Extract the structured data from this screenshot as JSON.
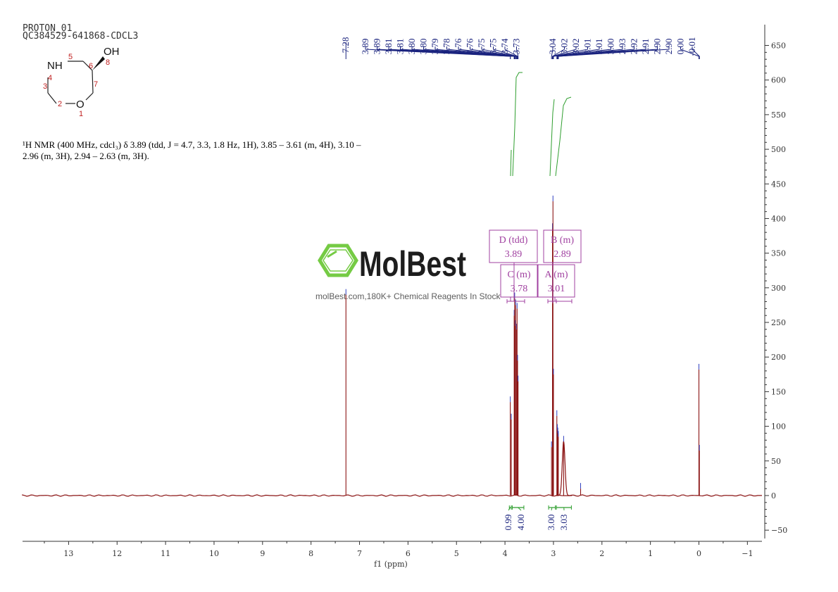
{
  "header": {
    "line1": "PROTON_01",
    "line2": "QC384529-641868-CDCL3"
  },
  "molecule": {
    "labels": {
      "nh": "NH",
      "oh": "OH",
      "o": "O"
    },
    "atom_numbers": [
      "1",
      "2",
      "3",
      "4",
      "5",
      "6",
      "7",
      "8"
    ]
  },
  "description": {
    "line1": "¹H NMR (400 MHz, cdcl₃) δ 3.89 (tdd, J = 4.7, 3.3, 1.8 Hz, 1H), 3.85 – 3.61 (m, 4H), 3.10 –",
    "line2": "2.96 (m, 3H), 2.94 – 2.63 (m, 3H)."
  },
  "watermark": {
    "brand": "MolBest",
    "tagline": "molBest.com,180K+ Chemical Reagents In Stock"
  },
  "chart_data": {
    "type": "line",
    "xlabel": "f1 (ppm)",
    "x_reversed": true,
    "xlim": [
      13.95,
      -1.3
    ],
    "ylim": [
      -60,
      680
    ],
    "x_ticks": [
      13,
      12,
      11,
      10,
      9,
      8,
      7,
      6,
      5,
      4,
      3,
      2,
      1,
      0,
      -1
    ],
    "x_tick_labels": [
      "13",
      "12",
      "11",
      "10",
      "9",
      "8",
      "7",
      "6",
      "5",
      "4",
      "3",
      "2",
      "1",
      "0",
      "−1"
    ],
    "y_ticks": [
      650,
      600,
      550,
      500,
      450,
      400,
      350,
      300,
      250,
      200,
      150,
      100,
      50,
      0,
      -50
    ],
    "y_tick_labels": [
      "650",
      "600",
      "550",
      "500",
      "450",
      "400",
      "350",
      "300",
      "250",
      "200",
      "150",
      "100",
      "50",
      "0",
      "−50"
    ],
    "peak_labels_a": [
      "7.28",
      "3.89",
      "3.89",
      "3.81",
      "3.81",
      "3.80",
      "3.80",
      "3.79",
      "3.78",
      "3.76",
      "3.76",
      "3.75",
      "3.75",
      "3.74",
      "3.73"
    ],
    "peak_labels_b": [
      "3.04",
      "3.02",
      "3.02",
      "3.01",
      "3.01",
      "3.00",
      "2.93",
      "2.92",
      "2.91",
      "2.90",
      "2.90",
      "0.00",
      "-0.01"
    ],
    "peaks": [
      {
        "x": 7.28,
        "h": 290
      },
      {
        "x": 3.89,
        "h": 135
      },
      {
        "x": 3.87,
        "h": 110
      },
      {
        "x": 3.81,
        "h": 260
      },
      {
        "x": 3.8,
        "h": 285
      },
      {
        "x": 3.79,
        "h": 245
      },
      {
        "x": 3.78,
        "h": 275
      },
      {
        "x": 3.76,
        "h": 240
      },
      {
        "x": 3.75,
        "h": 270
      },
      {
        "x": 3.74,
        "h": 195
      },
      {
        "x": 3.73,
        "h": 165
      },
      {
        "x": 3.04,
        "h": 70
      },
      {
        "x": 3.02,
        "h": 385
      },
      {
        "x": 3.01,
        "h": 425
      },
      {
        "x": 3.0,
        "h": 175
      },
      {
        "x": 2.93,
        "h": 115
      },
      {
        "x": 2.92,
        "h": 95
      },
      {
        "x": 2.91,
        "h": 90
      },
      {
        "x": 2.9,
        "h": 85
      },
      {
        "x": 2.79,
        "h": 78
      },
      {
        "x": 2.44,
        "h": 10
      },
      {
        "x": 0.0,
        "h": 182
      },
      {
        "x": -0.01,
        "h": 65
      }
    ],
    "multiplets": [
      {
        "id": "D",
        "type": "tdd",
        "shift": "3.89",
        "title": "D (tdd)",
        "value": "3.89"
      },
      {
        "id": "B",
        "type": "m",
        "shift": "2.89",
        "title": "B (m)",
        "value": "2.89"
      },
      {
        "id": "C",
        "type": "m",
        "shift": "3.78",
        "title": "C (m)",
        "value": "3.78"
      },
      {
        "id": "A",
        "type": "m",
        "shift": "3.01",
        "title": "A (m)",
        "value": "3.01"
      }
    ],
    "integrals": [
      {
        "label": "0.99",
        "from": 3.91,
        "to": 3.87
      },
      {
        "label": "4.00",
        "from": 3.85,
        "to": 3.61
      },
      {
        "label": "3.00",
        "from": 3.1,
        "to": 2.96
      },
      {
        "label": "3.03",
        "from": 2.94,
        "to": 2.63
      }
    ],
    "colors": {
      "spectrum": "#8b1414",
      "peak_labels": "#1a237e",
      "integral": "#2e9e2e",
      "multiplet": "#a040a0",
      "axis": "#333333",
      "watermark_green": "#6ec93b"
    }
  }
}
